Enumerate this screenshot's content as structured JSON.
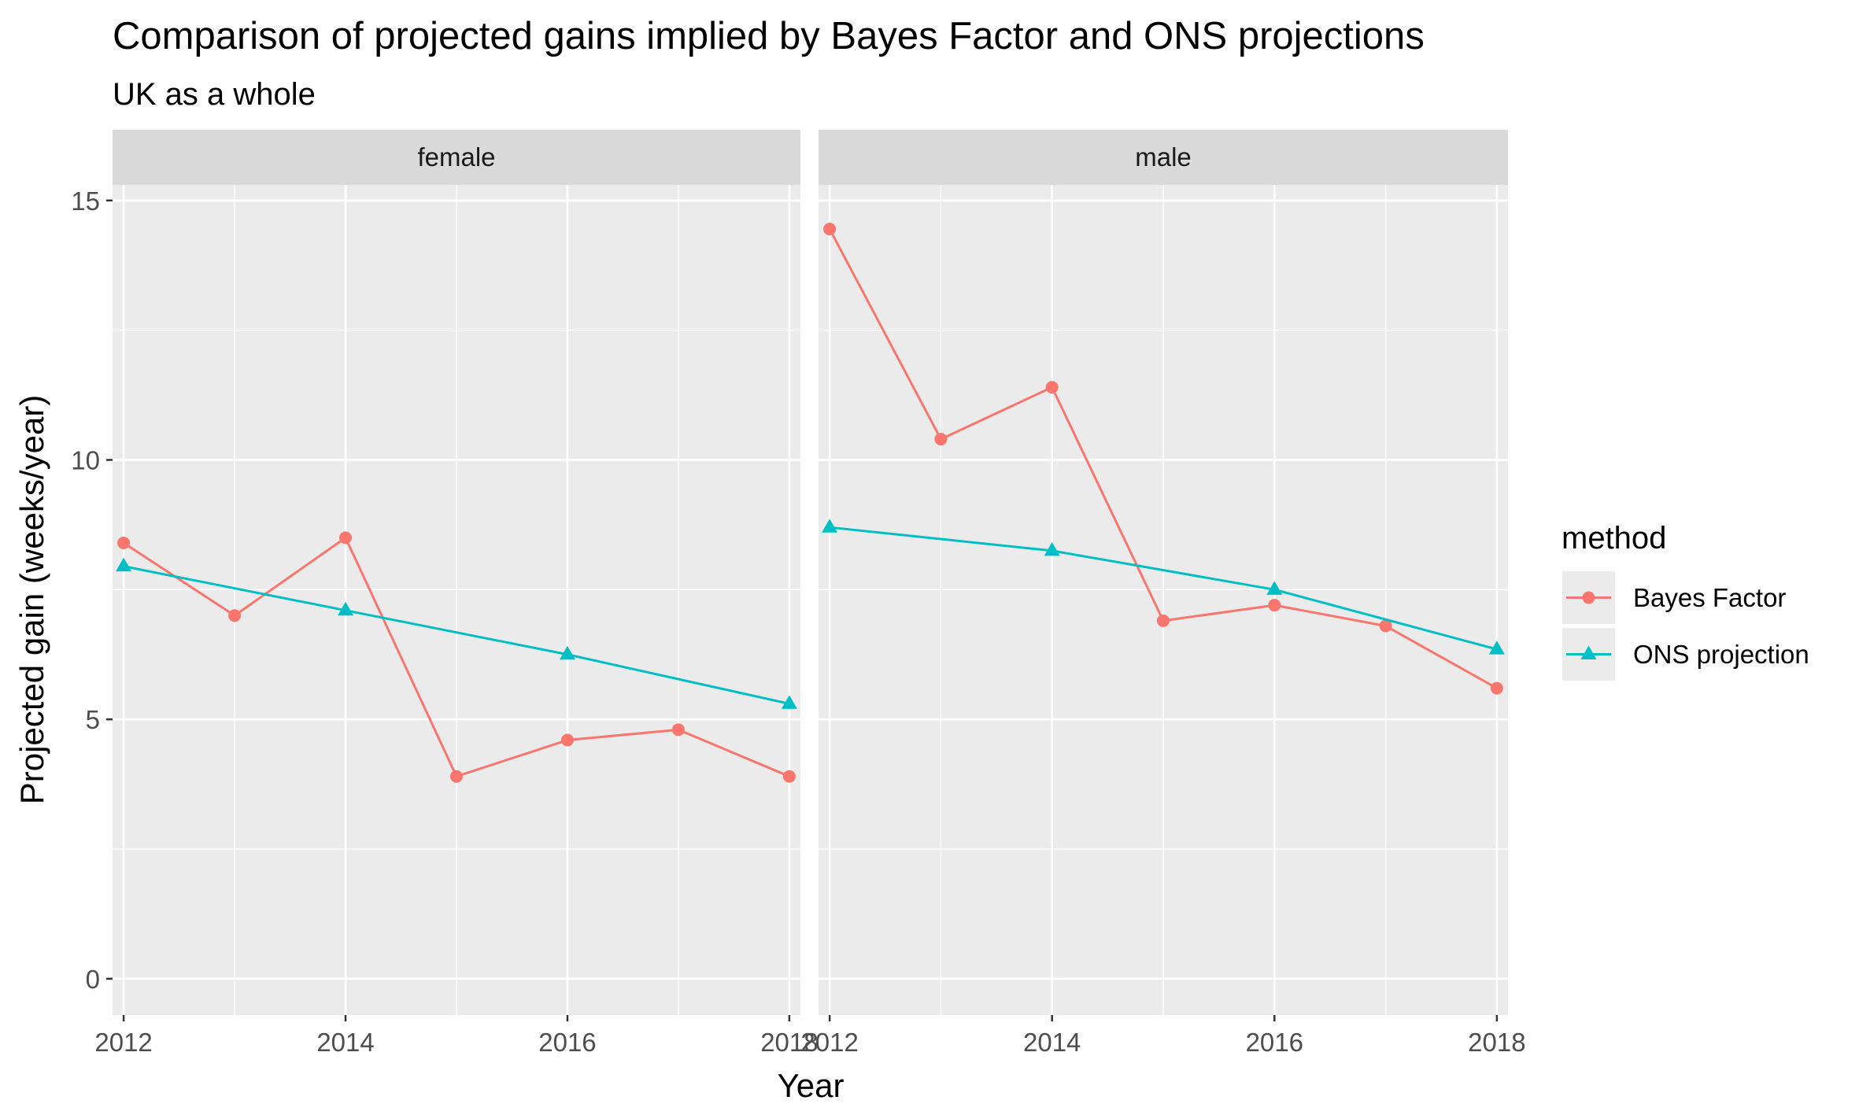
{
  "chart_data": {
    "type": "line",
    "title": "Comparison of projected gains implied by Bayes Factor and ONS projections",
    "subtitle": "UK as a whole",
    "xlabel": "Year",
    "ylabel": "Projected gain (weeks/year)",
    "xlim": [
      2011.9,
      2018.1
    ],
    "ylim": [
      -0.7,
      15.3
    ],
    "x_ticks": [
      2012,
      2014,
      2016,
      2018
    ],
    "y_ticks": [
      0,
      5,
      10,
      15
    ],
    "grid": true,
    "legend": {
      "title": "method",
      "position": "right",
      "entries": [
        {
          "label": "Bayes Factor",
          "color": "#F8766D",
          "marker": "circle"
        },
        {
          "label": "ONS projection",
          "color": "#00BFC4",
          "marker": "triangle"
        }
      ]
    },
    "facets": [
      {
        "label": "female",
        "series": [
          {
            "name": "Bayes Factor",
            "x": [
              2012,
              2013,
              2014,
              2015,
              2016,
              2017,
              2018
            ],
            "y": [
              8.4,
              7.0,
              8.5,
              3.9,
              4.6,
              4.8,
              3.9
            ]
          },
          {
            "name": "ONS projection",
            "x": [
              2012,
              2014,
              2016,
              2018
            ],
            "y": [
              7.95,
              7.1,
              6.25,
              5.3
            ]
          }
        ]
      },
      {
        "label": "male",
        "series": [
          {
            "name": "Bayes Factor",
            "x": [
              2012,
              2013,
              2014,
              2015,
              2016,
              2017,
              2018
            ],
            "y": [
              14.45,
              10.4,
              11.4,
              6.9,
              7.2,
              6.8,
              5.6
            ]
          },
          {
            "name": "ONS projection",
            "x": [
              2012,
              2014,
              2016,
              2018
            ],
            "y": [
              8.7,
              8.25,
              7.5,
              6.35
            ]
          }
        ]
      }
    ]
  }
}
